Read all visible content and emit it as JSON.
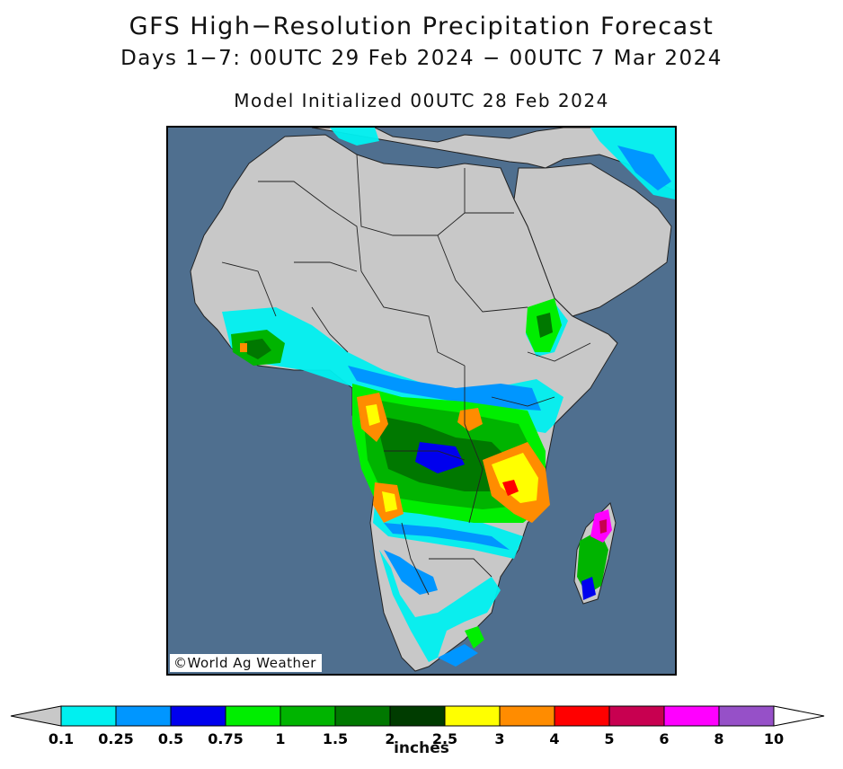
{
  "header": {
    "title": "GFS High−Resolution Precipitation Forecast",
    "subtitle": "Days 1−7: 00UTC 29 Feb 2024 − 00UTC 7 Mar 2024",
    "init_line": "Model Initialized 00UTC 28 Feb 2024"
  },
  "map": {
    "credit": "©World Ag Weather",
    "ocean_color": "#4f6f8f",
    "land_color": "#c8c8c8"
  },
  "legend": {
    "units": "inches",
    "under_color": "#c8c8c8",
    "over_color": "#ffffff",
    "levels": [
      "0.1",
      "0.25",
      "0.5",
      "0.75",
      "1",
      "1.5",
      "2",
      "2.5",
      "3",
      "4",
      "5",
      "6",
      "8",
      "10"
    ],
    "colors": [
      "#00f0f0",
      "#0096ff",
      "#0000ee",
      "#00ee00",
      "#00b400",
      "#007800",
      "#003c00",
      "#ffff00",
      "#ff8c00",
      "#ff0000",
      "#c80050",
      "#ff00ff",
      "#9650c8"
    ]
  }
}
